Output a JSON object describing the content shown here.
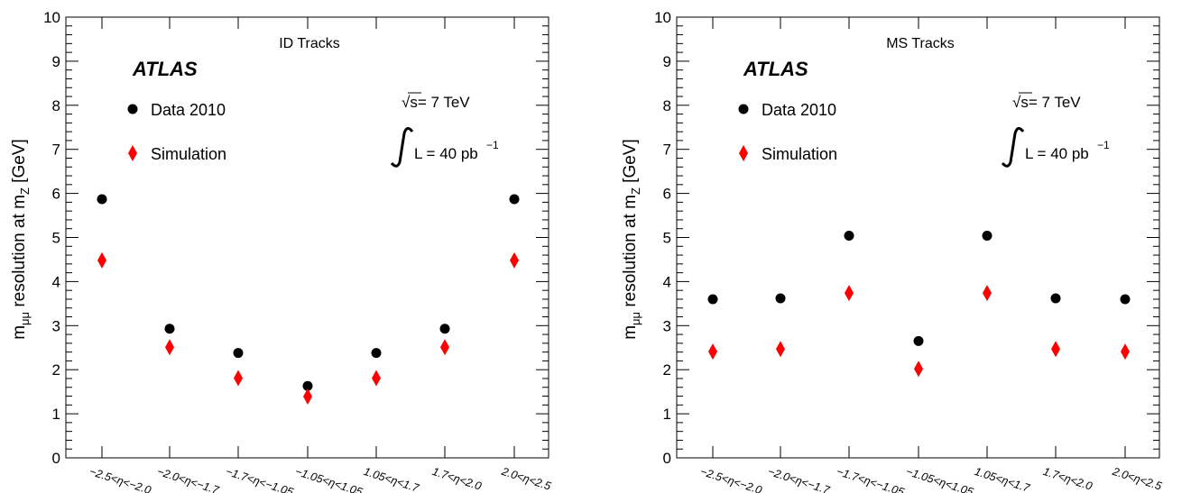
{
  "colors": {
    "data_marker": "#000000",
    "simulation_marker": "#ff0000",
    "axis": "#000000",
    "background": "#ffffff"
  },
  "chart_data": [
    {
      "type": "scatter",
      "panel_label": "ID Tracks",
      "experiment_label": "ATLAS",
      "energy_label": "√s= 7 TeV",
      "lumi_label": "L = 40 pb",
      "lumi_exponent": "−1",
      "ylabel_main": "m",
      "ylabel_sub": "μμ",
      "ylabel_rest": " resolution at m",
      "ylabel_sub2": "Z",
      "ylabel_unit": " [GeV]",
      "ylim": [
        0,
        10
      ],
      "yticks": [
        "0",
        "1",
        "2",
        "3",
        "4",
        "5",
        "6",
        "7",
        "8",
        "9",
        "10"
      ],
      "categories": [
        "−2.5<η<−2.0",
        "−2.0<η<−1.7",
        "−1.7<η<−1.05",
        "−1.05<η<1.05",
        "1.05<η<1.7",
        "1.7<η<2.0",
        "2.0<η<2.5"
      ],
      "legend_placement": "top-left",
      "series": [
        {
          "name": "Data 2010",
          "marker": "circle",
          "values": [
            5.87,
            2.93,
            2.38,
            1.63,
            2.38,
            2.93,
            5.87
          ]
        },
        {
          "name": "Simulation",
          "marker": "diamond",
          "values": [
            4.48,
            2.51,
            1.81,
            1.39,
            1.81,
            2.51,
            4.48
          ]
        }
      ]
    },
    {
      "type": "scatter",
      "panel_label": "MS Tracks",
      "experiment_label": "ATLAS",
      "energy_label": "√s= 7 TeV",
      "lumi_label": "L = 40 pb",
      "lumi_exponent": "−1",
      "ylabel_main": "m",
      "ylabel_sub": "μμ",
      "ylabel_rest": " resolution at m",
      "ylabel_sub2": "Z",
      "ylabel_unit": " [GeV]",
      "ylim": [
        0,
        10
      ],
      "yticks": [
        "0",
        "1",
        "2",
        "3",
        "4",
        "5",
        "6",
        "7",
        "8",
        "9",
        "10"
      ],
      "categories": [
        "−2.5<η<−2.0",
        "−2.0<η<−1.7",
        "−1.7<η<−1.05",
        "−1.05<η<1.05",
        "1.05<η<1.7",
        "1.7<η<2.0",
        "2.0<η<2.5"
      ],
      "legend_placement": "top-left",
      "series": [
        {
          "name": "Data 2010",
          "marker": "circle",
          "values": [
            3.6,
            3.62,
            5.04,
            2.65,
            5.04,
            3.62,
            3.6
          ]
        },
        {
          "name": "Simulation",
          "marker": "diamond",
          "values": [
            2.41,
            2.47,
            3.74,
            2.02,
            3.74,
            2.47,
            2.41
          ]
        }
      ]
    }
  ]
}
